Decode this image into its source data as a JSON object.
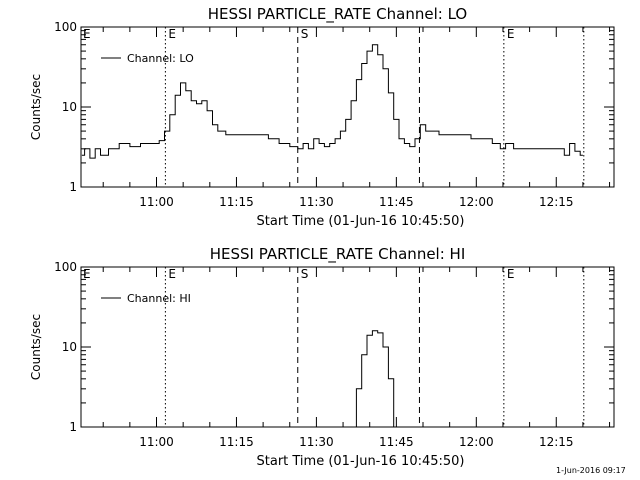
{
  "chart_data": [
    {
      "type": "line",
      "title": "HESSI PARTICLE_RATE Channel: LO",
      "xlabel": "Start Time (01-Jun-16 10:45:50)",
      "ylabel": "Counts/sec",
      "yscale": "log",
      "ylim": [
        1,
        100
      ],
      "xlim": [
        "10:45:50",
        "12:25:50"
      ],
      "x_tick_labels": [
        "11:00",
        "11:15",
        "11:30",
        "11:45",
        "12:00",
        "12:15"
      ],
      "y_tick_labels": [
        "1",
        "10",
        "100"
      ],
      "legend": "Channel: LO",
      "legend_position": "top-left",
      "markers": [
        {
          "label": "E",
          "style": "dotted",
          "x": "11:01:40"
        },
        {
          "label": "S",
          "style": "dashed",
          "x": "11:26:30"
        },
        {
          "label": "",
          "style": "dashed",
          "x": "11:49:20"
        },
        {
          "label": "E",
          "style": "dotted",
          "x": "12:05:10"
        },
        {
          "label": "",
          "style": "dotted",
          "x": "12:20:10"
        }
      ],
      "series": [
        {
          "name": "Channel: LO",
          "x": [
            "10:46:00",
            "10:47:00",
            "10:48:00",
            "10:49:00",
            "10:50:00",
            "10:52:00",
            "10:54:00",
            "10:56:00",
            "10:58:00",
            "11:00:00",
            "11:01:00",
            "11:02:00",
            "11:03:00",
            "11:04:00",
            "11:05:00",
            "11:06:00",
            "11:07:00",
            "11:08:00",
            "11:09:00",
            "11:10:00",
            "11:11:00",
            "11:12:00",
            "11:14:00",
            "11:16:00",
            "11:18:00",
            "11:20:00",
            "11:22:00",
            "11:24:00",
            "11:26:00",
            "11:27:00",
            "11:28:00",
            "11:29:00",
            "11:30:00",
            "11:31:00",
            "11:32:00",
            "11:33:00",
            "11:34:00",
            "11:35:00",
            "11:36:00",
            "11:37:00",
            "11:38:00",
            "11:39:00",
            "11:40:00",
            "11:41:00",
            "11:42:00",
            "11:43:00",
            "11:44:00",
            "11:45:00",
            "11:46:00",
            "11:47:00",
            "11:48:00",
            "11:49:00",
            "11:50:00",
            "11:51:00",
            "11:52:00",
            "11:54:00",
            "11:56:00",
            "11:58:00",
            "12:00:00",
            "12:02:00",
            "12:04:00",
            "12:05:00",
            "12:06:00",
            "12:08:00",
            "12:10:00",
            "12:12:00",
            "12:14:00",
            "12:16:00",
            "12:17:00",
            "12:18:00",
            "12:19:00",
            "12:20:00"
          ],
          "values": [
            2.5,
            3,
            2.3,
            3,
            2.5,
            3,
            3.5,
            3.2,
            3.5,
            3.5,
            3.8,
            5,
            8,
            14,
            20,
            16,
            12,
            11,
            12,
            9,
            6,
            5,
            4.5,
            4.5,
            4.5,
            4.5,
            4,
            3.5,
            3.2,
            3,
            3.5,
            3,
            4,
            3.5,
            3.2,
            3.5,
            4,
            5,
            7,
            12,
            22,
            35,
            50,
            60,
            45,
            30,
            15,
            7,
            4,
            3.5,
            3.2,
            4,
            6,
            5,
            5,
            4.5,
            4.5,
            4.5,
            4,
            4,
            3.5,
            3,
            3.5,
            3,
            3,
            3,
            3,
            3,
            2.5,
            3.5,
            2.8,
            2.5
          ]
        }
      ]
    },
    {
      "type": "line",
      "title": "HESSI PARTICLE_RATE Channel: HI",
      "xlabel": "Start Time (01-Jun-16 10:45:50)",
      "ylabel": "Counts/sec",
      "yscale": "log",
      "ylim": [
        1,
        100
      ],
      "xlim": [
        "10:45:50",
        "12:25:50"
      ],
      "x_tick_labels": [
        "11:00",
        "11:15",
        "11:30",
        "11:45",
        "12:00",
        "12:15"
      ],
      "y_tick_labels": [
        "1",
        "10",
        "100"
      ],
      "legend": "Channel: HI",
      "legend_position": "top-left",
      "markers": [
        {
          "label": "E",
          "style": "dotted",
          "x": "11:01:40"
        },
        {
          "label": "S",
          "style": "dashed",
          "x": "11:26:30"
        },
        {
          "label": "",
          "style": "dashed",
          "x": "11:49:20"
        },
        {
          "label": "E",
          "style": "dotted",
          "x": "12:05:10"
        },
        {
          "label": "",
          "style": "dotted",
          "x": "12:20:10"
        }
      ],
      "series": [
        {
          "name": "Channel: HI",
          "x": [
            "11:37:00",
            "11:38:00",
            "11:39:00",
            "11:40:00",
            "11:41:00",
            "11:42:00",
            "11:43:00",
            "11:44:00",
            "11:45:00"
          ],
          "values": [
            1,
            3,
            8,
            14,
            16,
            15,
            10,
            4,
            1
          ]
        }
      ]
    }
  ],
  "footer": {
    "date_stamp": "1-Jun-2016 09:17"
  }
}
